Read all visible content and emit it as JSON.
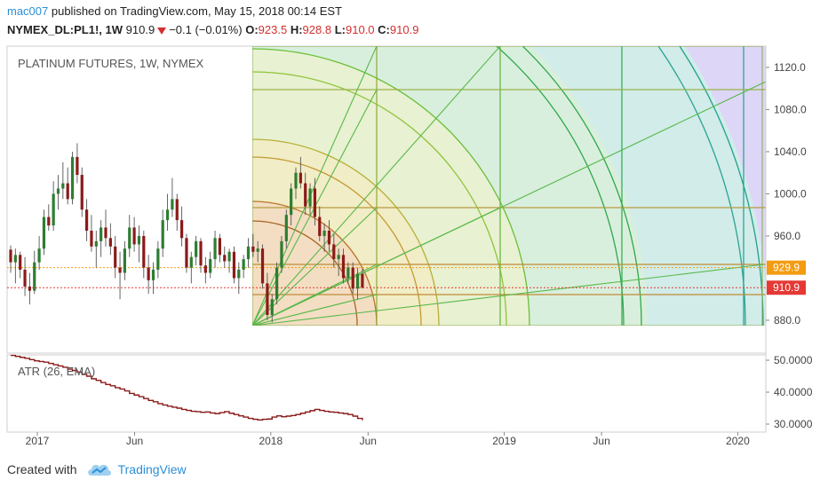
{
  "header": {
    "user": "mac007",
    "published_text": " published on TradingView.com, May 15, 2018 00:14 EST",
    "symbol": "NYMEX_DL:PL1!, 1W",
    "last": "910.9",
    "change": "−0.1 (−0.01%)",
    "o_label": "O:",
    "o_val": "923.5",
    "h_label": "H:",
    "h_val": "928.8",
    "l_label": "L:",
    "l_val": "910.0",
    "c_label": "C:",
    "c_val": "910.9"
  },
  "colors": {
    "up": "#2e7d32",
    "down": "#8b1a1a",
    "price_line": "#e53935",
    "level_line": "#f39c12",
    "atr_line": "#8b1a1a",
    "brand": "#2b8fd6"
  },
  "footer": {
    "created_with": "Created with",
    "brand": "TradingView"
  },
  "chart_data": [
    {
      "type": "candlestick",
      "title": "PLATINUM FUTURES, 1W, NYMEX",
      "x_ticks": [
        "2017",
        "Jun",
        "2018",
        "Jun",
        "2019",
        "Jun",
        "2020"
      ],
      "y_ticks": [
        "1120.0",
        "1080.0",
        "1040.0",
        "1000.0",
        "960.0",
        "880.0"
      ],
      "ylim": [
        868,
        1130
      ],
      "price_labels": [
        {
          "value": 929.9,
          "text": "929.9",
          "color": "#f39c12"
        },
        {
          "value": 910.9,
          "text": "910.9",
          "color": "#e53935"
        }
      ],
      "overlay": "Gann fan / box",
      "ohlc": [
        [
          947,
          951,
          925,
          935
        ],
        [
          935,
          948,
          915,
          942
        ],
        [
          942,
          945,
          920,
          928
        ],
        [
          928,
          940,
          903,
          912
        ],
        [
          912,
          925,
          895,
          908
        ],
        [
          908,
          946,
          905,
          935
        ],
        [
          935,
          960,
          928,
          948
        ],
        [
          948,
          985,
          942,
          978
        ],
        [
          978,
          990,
          965,
          970
        ],
        [
          970,
          1012,
          965,
          1000
        ],
        [
          1000,
          1018,
          985,
          1005
        ],
        [
          1005,
          1030,
          995,
          1010
        ],
        [
          1010,
          1025,
          990,
          995
        ],
        [
          995,
          1040,
          990,
          1035
        ],
        [
          1035,
          1048,
          1010,
          1018
        ],
        [
          1018,
          1025,
          978,
          985
        ],
        [
          985,
          995,
          955,
          965
        ],
        [
          965,
          980,
          945,
          950
        ],
        [
          950,
          965,
          930,
          955
        ],
        [
          955,
          975,
          940,
          968
        ],
        [
          968,
          985,
          950,
          958
        ],
        [
          958,
          972,
          942,
          950
        ],
        [
          950,
          960,
          920,
          930
        ],
        [
          930,
          945,
          900,
          925
        ],
        [
          925,
          955,
          918,
          948
        ],
        [
          948,
          980,
          940,
          968
        ],
        [
          968,
          978,
          945,
          952
        ],
        [
          952,
          970,
          935,
          960
        ],
        [
          960,
          965,
          920,
          930
        ],
        [
          930,
          942,
          905,
          918
        ],
        [
          918,
          935,
          905,
          928
        ],
        [
          928,
          955,
          920,
          948
        ],
        [
          948,
          985,
          940,
          975
        ],
        [
          975,
          1000,
          965,
          985
        ],
        [
          985,
          1015,
          978,
          995
        ],
        [
          995,
          1000,
          965,
          975
        ],
        [
          975,
          988,
          950,
          958
        ],
        [
          958,
          962,
          925,
          930
        ],
        [
          930,
          945,
          915,
          940
        ],
        [
          940,
          960,
          932,
          955
        ],
        [
          955,
          958,
          925,
          932
        ],
        [
          932,
          940,
          915,
          925
        ],
        [
          925,
          945,
          920,
          938
        ],
        [
          938,
          965,
          930,
          958
        ],
        [
          958,
          962,
          935,
          942
        ],
        [
          942,
          950,
          930,
          936
        ],
        [
          936,
          948,
          925,
          945
        ],
        [
          945,
          950,
          915,
          920
        ],
        [
          920,
          935,
          905,
          928
        ],
        [
          928,
          942,
          920,
          938
        ],
        [
          938,
          958,
          930,
          950
        ],
        [
          950,
          962,
          940,
          945
        ],
        [
          945,
          955,
          935,
          948
        ],
        [
          948,
          952,
          910,
          915
        ],
        [
          915,
          925,
          880,
          885
        ],
        [
          885,
          905,
          878,
          900
        ],
        [
          900,
          935,
          895,
          930
        ],
        [
          930,
          960,
          925,
          955
        ],
        [
          955,
          985,
          948,
          980
        ],
        [
          980,
          1010,
          970,
          1005
        ],
        [
          1005,
          1025,
          995,
          1020
        ],
        [
          1020,
          1035,
          1005,
          1010
        ],
        [
          1010,
          1020,
          980,
          988
        ],
        [
          988,
          1010,
          980,
          1005
        ],
        [
          1005,
          1015,
          970,
          978
        ],
        [
          978,
          988,
          955,
          960
        ],
        [
          960,
          972,
          945,
          965
        ],
        [
          965,
          975,
          945,
          952
        ],
        [
          952,
          962,
          930,
          938
        ],
        [
          938,
          948,
          922,
          942
        ],
        [
          942,
          948,
          915,
          920
        ],
        [
          920,
          935,
          915,
          930
        ],
        [
          930,
          935,
          905,
          910
        ],
        [
          910,
          930,
          900,
          924
        ],
        [
          924,
          929,
          910,
          911
        ]
      ]
    },
    {
      "type": "line",
      "title": "ATR (26, EMA)",
      "y_ticks": [
        "50.0000",
        "40.0000",
        "30.0000"
      ],
      "ylim": [
        29,
        51.5
      ],
      "values": [
        51.5,
        51.2,
        50.9,
        50.6,
        50.2,
        49.8,
        49.6,
        49.4,
        49.0,
        48.6,
        48.2,
        47.8,
        47.2,
        46.8,
        46.3,
        45.6,
        45.0,
        44.2,
        43.7,
        43.0,
        42.4,
        42.0,
        41.4,
        41.0,
        40.4,
        39.6,
        39.1,
        38.6,
        38.0,
        37.4,
        37.0,
        36.4,
        36.0,
        35.6,
        35.3,
        35.0,
        34.6,
        34.3,
        34.0,
        33.9,
        33.7,
        33.8,
        33.5,
        33.3,
        33.6,
        33.9,
        33.4,
        33.0,
        32.6,
        32.2,
        31.8,
        31.5,
        31.3,
        31.5,
        31.6,
        32.2,
        32.6,
        32.3,
        32.5,
        32.7,
        33.0,
        33.4,
        33.8,
        34.2,
        34.6,
        34.3,
        34.0,
        33.8,
        33.7,
        33.5,
        33.3,
        33.0,
        32.5,
        31.8,
        31.2
      ]
    }
  ]
}
